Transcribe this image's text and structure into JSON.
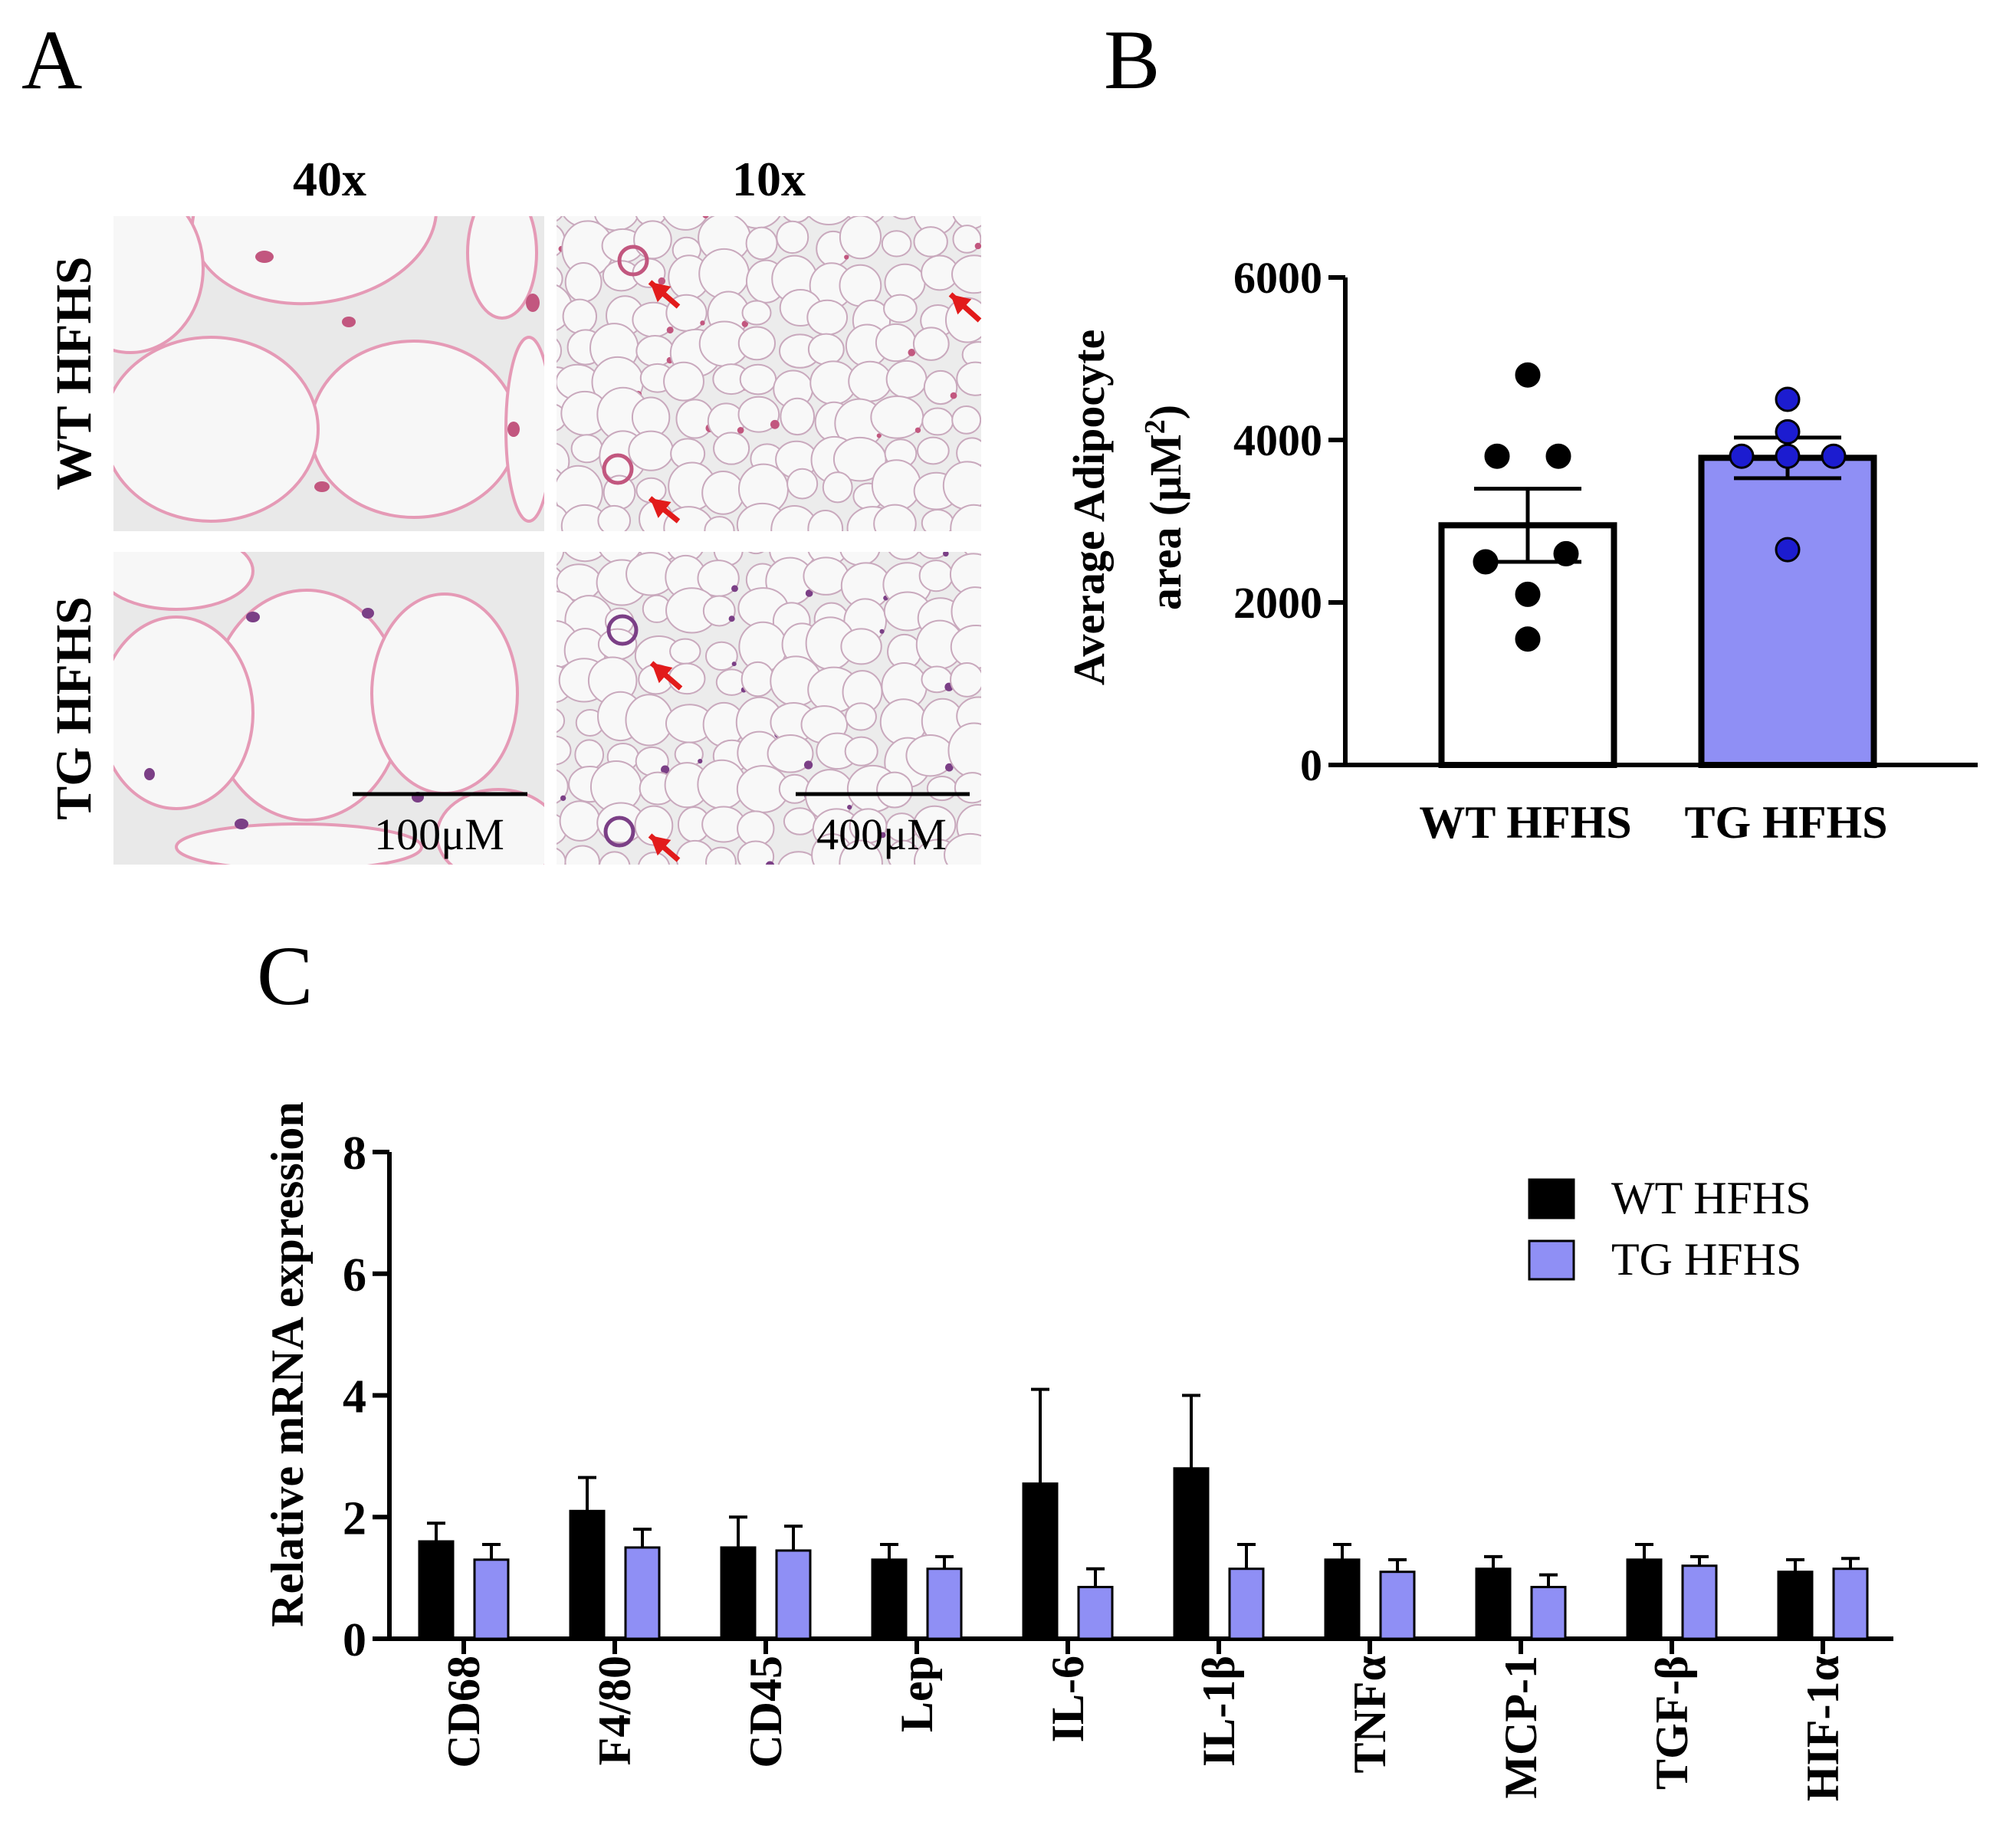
{
  "panel_a": {
    "letter": "A",
    "col_headers": [
      "40x",
      "10x"
    ],
    "row_headers": [
      "WT HFHS",
      "TG HFHS"
    ],
    "scale_bars": [
      "100μM",
      "400μM"
    ]
  },
  "panel_b": {
    "letter": "B"
  },
  "panel_c": {
    "letter": "C"
  },
  "colors": {
    "wt": "#000000",
    "tg": "#8f8ff5",
    "tg_dot": "#1c1cd0",
    "arrow": "#e21b1b",
    "stain": "#c2577f",
    "stain_dark": "#7b3f86"
  },
  "chart_data": [
    {
      "id": "B",
      "type": "bar",
      "categories": [
        "WT HFHS",
        "TG HFHS"
      ],
      "values": [
        2950,
        3780
      ],
      "sem": [
        450,
        250
      ],
      "points": [
        [
          4800,
          3800,
          3800,
          2600,
          2500,
          2100,
          1550
        ],
        [
          4500,
          4100,
          3800,
          3800,
          3800,
          2650
        ]
      ],
      "ylabel_line1": "Average Adipocyte",
      "ylabel_line2_prefix": "area (μM",
      "ylabel_sup": "2",
      "ylabel_suffix": ")",
      "ylim": [
        0,
        6000
      ],
      "yticks": [
        0,
        2000,
        4000,
        6000
      ],
      "ytick_labels": [
        "0",
        "2000",
        "4000",
        "6000"
      ]
    },
    {
      "id": "C",
      "type": "bar",
      "categories": [
        "CD68",
        "F4/80",
        "CD45",
        "Lep",
        "IL-6",
        "IL-1β",
        "TNFα",
        "MCP-1",
        "TGF-β",
        "HIF-1α"
      ],
      "series": [
        {
          "name": "WT HFHS",
          "values": [
            1.6,
            2.1,
            1.5,
            1.3,
            2.55,
            2.8,
            1.3,
            1.15,
            1.3,
            1.1
          ],
          "sem": [
            0.3,
            0.55,
            0.5,
            0.25,
            1.55,
            1.2,
            0.25,
            0.2,
            0.25,
            0.2
          ]
        },
        {
          "name": "TG HFHS",
          "values": [
            1.3,
            1.5,
            1.45,
            1.15,
            0.85,
            1.15,
            1.1,
            0.85,
            1.2,
            1.15
          ],
          "sem": [
            0.25,
            0.3,
            0.4,
            0.2,
            0.3,
            0.4,
            0.2,
            0.2,
            0.15,
            0.17
          ]
        }
      ],
      "ylabel": "Relative mRNA expression",
      "ylim": [
        0,
        8
      ],
      "yticks": [
        0,
        2,
        4,
        6,
        8
      ],
      "ytick_labels": [
        "0",
        "2",
        "4",
        "6",
        "8"
      ],
      "legend_position": "top-right"
    }
  ]
}
